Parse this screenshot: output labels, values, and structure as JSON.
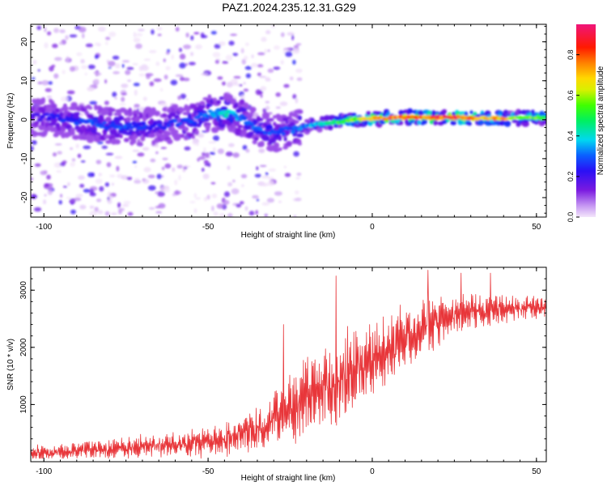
{
  "title": "PAZ1.2024.235.12.31.G29",
  "colors": {
    "snr_line": "#e8363a",
    "plot_frame": "#000000",
    "background": "#ffffff"
  },
  "chart_data": [
    {
      "type": "heatmap",
      "panel": "spectrogram",
      "xlabel": "Height of straight line (km)",
      "ylabel": "Frequency (Hz)",
      "xlim": [
        -104,
        53
      ],
      "ylim": [
        -25,
        24.5
      ],
      "x_ticks": [
        -100,
        -50,
        0,
        50
      ],
      "y_ticks": [
        -20,
        -10,
        0,
        10,
        20
      ],
      "colormap": "rainbow (violet→blue→cyan→green→yellow→red→magenta)",
      "colorbar": {
        "label": "Normalized spectral amplitude",
        "range": [
          0,
          0.95
        ],
        "ticks": [
          0,
          0.2,
          0.4,
          0.6,
          0.8
        ]
      },
      "ridge": {
        "description": "dominant frequency band per height",
        "x": [
          -104,
          -95,
          -85,
          -75,
          -65,
          -55,
          -50,
          -45,
          -40,
          -35,
          -30,
          -25,
          -20,
          -15,
          -10,
          -5,
          0,
          5,
          10,
          15,
          20,
          25,
          30,
          35,
          40,
          45,
          50,
          53
        ],
        "frequency": [
          0.8,
          0.5,
          -1.0,
          -2.0,
          -1.5,
          -0.5,
          1.5,
          2.0,
          0.5,
          -2.0,
          -3.5,
          -2.5,
          -1.5,
          -1.0,
          -0.5,
          0.0,
          0.3,
          0.4,
          0.6,
          0.6,
          0.6,
          0.6,
          0.4,
          0.4,
          0.3,
          0.4,
          0.5,
          0.5
        ],
        "amplitude": [
          0.2,
          0.25,
          0.3,
          0.3,
          0.25,
          0.3,
          0.35,
          0.45,
          0.35,
          0.3,
          0.3,
          0.3,
          0.35,
          0.45,
          0.55,
          0.6,
          0.75,
          0.8,
          0.85,
          0.85,
          0.9,
          0.9,
          0.8,
          0.8,
          0.75,
          0.6,
          0.6,
          0.55
        ]
      },
      "scatter_zone": {
        "x_range": [
          -104,
          -22
        ],
        "frequency_range": [
          -25,
          24
        ],
        "amplitude_range": [
          0,
          0.25
        ]
      }
    },
    {
      "type": "line",
      "panel": "snr",
      "xlabel": "Height of straight line (km)",
      "ylabel": "SNR (10 * v/v)",
      "xlim": [
        -104,
        53
      ],
      "ylim": [
        0,
        3400
      ],
      "x_ticks": [
        -100,
        -50,
        0,
        50
      ],
      "y_ticks": [
        1000,
        2000,
        3000
      ],
      "series": [
        {
          "baseline_x": [
            -104,
            -90,
            -80,
            -70,
            -60,
            -50,
            -45,
            -40,
            -35,
            -30,
            -25,
            -20,
            -15,
            -10,
            -5,
            0,
            5,
            10,
            15,
            20,
            25,
            30,
            35,
            40,
            45,
            50,
            53
          ],
          "baseline_snr": [
            150,
            180,
            220,
            260,
            300,
            350,
            400,
            480,
            600,
            750,
            950,
            1150,
            1300,
            1450,
            1600,
            1750,
            1950,
            2150,
            2300,
            2450,
            2550,
            2600,
            2650,
            2650,
            2680,
            2700,
            2700
          ],
          "noise_amplitude": [
            120,
            140,
            160,
            180,
            200,
            230,
            260,
            300,
            350,
            420,
            550,
            650,
            700,
            700,
            650,
            600,
            550,
            500,
            450,
            400,
            350,
            300,
            250,
            220,
            200,
            180,
            160
          ],
          "peaks": [
            {
              "x": -11,
              "snr": 3250
            },
            {
              "x": -27,
              "snr": 2400
            },
            {
              "x": 17,
              "snr": 3350
            },
            {
              "x": 36,
              "snr": 3300
            },
            {
              "x": 27,
              "snr": 3300
            }
          ]
        }
      ]
    }
  ]
}
